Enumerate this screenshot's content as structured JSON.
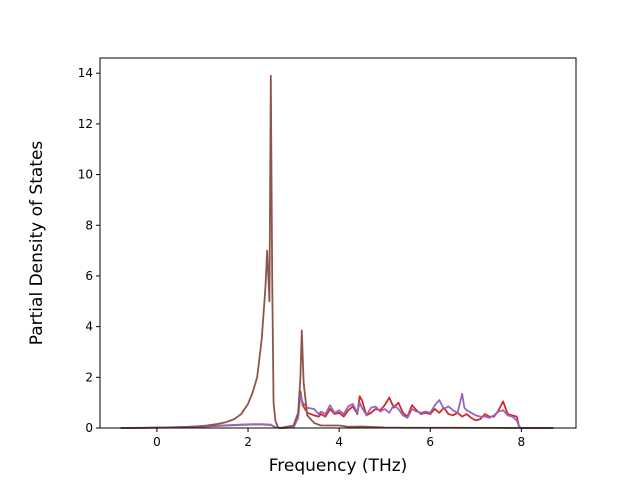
{
  "chart_data": {
    "type": "line",
    "title": "",
    "xlabel": "Frequency (THz)",
    "ylabel": "Partial Density of States",
    "xlim": [
      -1.25,
      9.2
    ],
    "ylim": [
      0,
      14.6
    ],
    "xticks": [
      0,
      2,
      4,
      6,
      8
    ],
    "yticks": [
      0,
      2,
      4,
      6,
      8,
      10,
      12,
      14
    ],
    "grid": false,
    "legend": "none",
    "series": [
      {
        "color": "#d62728",
        "points": [
          [
            -0.8,
            0
          ],
          [
            -0.3,
            0.005
          ],
          [
            0.3,
            0.02
          ],
          [
            0.8,
            0.04
          ],
          [
            1.3,
            0.08
          ],
          [
            1.8,
            0.12
          ],
          [
            2.1,
            0.14
          ],
          [
            2.3,
            0.14
          ],
          [
            2.5,
            0.12
          ],
          [
            2.6,
            0.03
          ],
          [
            2.7,
            0
          ],
          [
            3.0,
            0.02
          ],
          [
            3.1,
            0.5
          ],
          [
            3.15,
            1.45
          ],
          [
            3.2,
            0.9
          ],
          [
            3.3,
            0.6
          ],
          [
            3.45,
            0.5
          ],
          [
            3.55,
            0.45
          ],
          [
            3.6,
            0.55
          ],
          [
            3.7,
            0.45
          ],
          [
            3.8,
            0.75
          ],
          [
            3.9,
            0.55
          ],
          [
            4.0,
            0.6
          ],
          [
            4.1,
            0.45
          ],
          [
            4.2,
            0.7
          ],
          [
            4.3,
            0.85
          ],
          [
            4.4,
            0.55
          ],
          [
            4.45,
            1.25
          ],
          [
            4.5,
            1.1
          ],
          [
            4.6,
            0.5
          ],
          [
            4.7,
            0.6
          ],
          [
            4.8,
            0.75
          ],
          [
            4.9,
            0.7
          ],
          [
            5.0,
            0.9
          ],
          [
            5.1,
            1.2
          ],
          [
            5.2,
            0.8
          ],
          [
            5.3,
            1.0
          ],
          [
            5.4,
            0.6
          ],
          [
            5.5,
            0.45
          ],
          [
            5.6,
            0.9
          ],
          [
            5.7,
            0.7
          ],
          [
            5.8,
            0.55
          ],
          [
            5.9,
            0.6
          ],
          [
            6.0,
            0.55
          ],
          [
            6.1,
            0.75
          ],
          [
            6.2,
            0.6
          ],
          [
            6.3,
            0.8
          ],
          [
            6.4,
            0.55
          ],
          [
            6.5,
            0.5
          ],
          [
            6.6,
            0.6
          ],
          [
            6.7,
            0.45
          ],
          [
            6.8,
            0.55
          ],
          [
            6.9,
            0.4
          ],
          [
            7.0,
            0.3
          ],
          [
            7.1,
            0.35
          ],
          [
            7.2,
            0.55
          ],
          [
            7.3,
            0.45
          ],
          [
            7.4,
            0.45
          ],
          [
            7.5,
            0.7
          ],
          [
            7.6,
            1.05
          ],
          [
            7.7,
            0.55
          ],
          [
            7.8,
            0.5
          ],
          [
            7.9,
            0.45
          ],
          [
            7.95,
            0.05
          ],
          [
            8.0,
            0
          ],
          [
            8.7,
            0
          ]
        ]
      },
      {
        "color": "#9467bd",
        "points": [
          [
            -0.8,
            0
          ],
          [
            -0.3,
            0.01
          ],
          [
            0.3,
            0.03
          ],
          [
            0.8,
            0.05
          ],
          [
            1.3,
            0.09
          ],
          [
            1.8,
            0.13
          ],
          [
            2.1,
            0.15
          ],
          [
            2.3,
            0.15
          ],
          [
            2.5,
            0.13
          ],
          [
            2.6,
            0.03
          ],
          [
            2.7,
            0
          ],
          [
            3.0,
            0.02
          ],
          [
            3.1,
            0.4
          ],
          [
            3.15,
            1.3
          ],
          [
            3.2,
            1.0
          ],
          [
            3.3,
            0.8
          ],
          [
            3.45,
            0.75
          ],
          [
            3.55,
            0.55
          ],
          [
            3.6,
            0.65
          ],
          [
            3.7,
            0.55
          ],
          [
            3.8,
            0.9
          ],
          [
            3.9,
            0.6
          ],
          [
            4.0,
            0.7
          ],
          [
            4.1,
            0.55
          ],
          [
            4.2,
            0.85
          ],
          [
            4.3,
            0.95
          ],
          [
            4.4,
            0.6
          ],
          [
            4.45,
            1.0
          ],
          [
            4.5,
            0.8
          ],
          [
            4.6,
            0.5
          ],
          [
            4.7,
            0.8
          ],
          [
            4.8,
            0.85
          ],
          [
            4.9,
            0.65
          ],
          [
            5.0,
            0.75
          ],
          [
            5.1,
            0.6
          ],
          [
            5.2,
            0.9
          ],
          [
            5.3,
            0.75
          ],
          [
            5.4,
            0.5
          ],
          [
            5.5,
            0.4
          ],
          [
            5.6,
            0.75
          ],
          [
            5.7,
            0.65
          ],
          [
            5.8,
            0.6
          ],
          [
            5.9,
            0.65
          ],
          [
            6.0,
            0.6
          ],
          [
            6.1,
            0.9
          ],
          [
            6.2,
            1.1
          ],
          [
            6.3,
            0.75
          ],
          [
            6.4,
            0.85
          ],
          [
            6.5,
            0.7
          ],
          [
            6.6,
            0.6
          ],
          [
            6.7,
            1.35
          ],
          [
            6.75,
            0.8
          ],
          [
            6.8,
            0.7
          ],
          [
            6.9,
            0.6
          ],
          [
            7.0,
            0.5
          ],
          [
            7.1,
            0.45
          ],
          [
            7.2,
            0.45
          ],
          [
            7.3,
            0.4
          ],
          [
            7.4,
            0.5
          ],
          [
            7.5,
            0.65
          ],
          [
            7.6,
            0.7
          ],
          [
            7.7,
            0.5
          ],
          [
            7.8,
            0.45
          ],
          [
            7.9,
            0.3
          ],
          [
            7.95,
            0.05
          ],
          [
            8.0,
            0
          ],
          [
            8.7,
            0
          ]
        ]
      },
      {
        "color": "#8c564b",
        "points": [
          [
            -0.8,
            0
          ],
          [
            -0.3,
            0.005
          ],
          [
            0.0,
            0.01
          ],
          [
            0.3,
            0.02
          ],
          [
            0.6,
            0.04
          ],
          [
            0.9,
            0.07
          ],
          [
            1.1,
            0.1
          ],
          [
            1.3,
            0.15
          ],
          [
            1.5,
            0.22
          ],
          [
            1.7,
            0.35
          ],
          [
            1.85,
            0.55
          ],
          [
            2.0,
            0.95
          ],
          [
            2.1,
            1.4
          ],
          [
            2.2,
            2.0
          ],
          [
            2.3,
            3.5
          ],
          [
            2.38,
            5.5
          ],
          [
            2.42,
            7.0
          ],
          [
            2.47,
            5.0
          ],
          [
            2.5,
            13.9
          ],
          [
            2.53,
            6.0
          ],
          [
            2.56,
            1.0
          ],
          [
            2.6,
            0.3
          ],
          [
            2.65,
            0.05
          ],
          [
            2.7,
            0
          ],
          [
            3.0,
            0.1
          ],
          [
            3.1,
            0.6
          ],
          [
            3.15,
            2.0
          ],
          [
            3.18,
            3.85
          ],
          [
            3.22,
            1.8
          ],
          [
            3.3,
            0.5
          ],
          [
            3.45,
            0.2
          ],
          [
            3.6,
            0.1
          ],
          [
            4.0,
            0.1
          ],
          [
            4.2,
            0.05
          ],
          [
            4.5,
            0.06
          ],
          [
            5.0,
            0.02
          ],
          [
            5.5,
            0.01
          ],
          [
            6.5,
            0.01
          ],
          [
            7.5,
            0.005
          ],
          [
            8.0,
            0
          ],
          [
            8.7,
            0
          ]
        ]
      }
    ]
  }
}
